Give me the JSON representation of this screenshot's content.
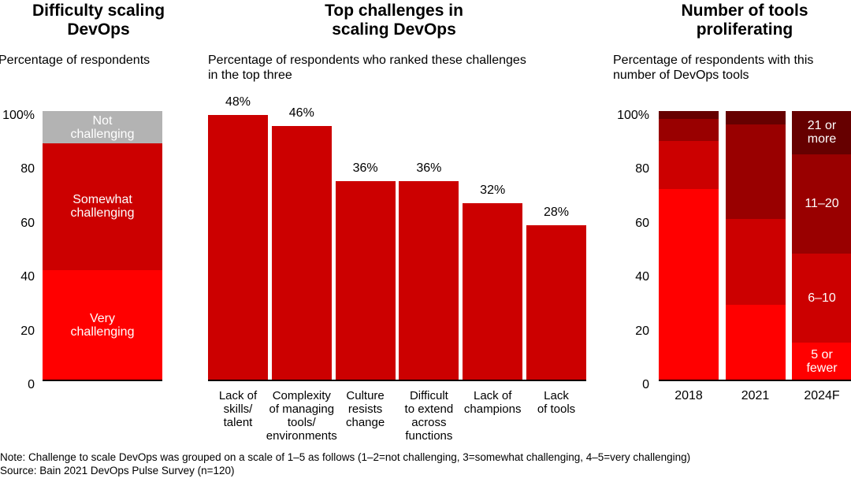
{
  "chart_data": [
    {
      "type": "bar",
      "stacked": true,
      "title": "Difficulty scaling\nDevOps",
      "subtitle": "Percentage of respondents",
      "yticks": [
        "100%",
        "80",
        "60",
        "40",
        "20",
        "0"
      ],
      "ylim": [
        0,
        100
      ],
      "series": [
        {
          "name": "Very\nchallenging",
          "value": 41,
          "color": "#ff0000"
        },
        {
          "name": "Somewhat\nchallenging",
          "value": 47,
          "color": "#cc0000"
        },
        {
          "name": "Not\nchallenging",
          "value": 12,
          "color": "#b3b3b3"
        }
      ]
    },
    {
      "type": "bar",
      "title": "Top challenges in\nscaling DevOps",
      "subtitle": "Percentage of respondents who ranked these challenges\nin the top three",
      "categories": [
        "Lack of\nskills/\ntalent",
        "Complexity\nof managing\ntools/\nenvironments",
        "Culture\nresists\nchange",
        "Difficult\nto extend\nacross\nfunctions",
        "Lack of\nchampions",
        "Lack\nof tools"
      ],
      "values": [
        48,
        46,
        36,
        36,
        32,
        28
      ],
      "labels": [
        "48%",
        "46%",
        "36%",
        "36%",
        "32%",
        "28%"
      ],
      "color": "#cc0000"
    },
    {
      "type": "bar",
      "stacked": true,
      "title": "Number of tools\nproliferating",
      "subtitle": "Percentage of respondents with this\nnumber of DevOps tools",
      "yticks": [
        "100%",
        "80",
        "60",
        "40",
        "20",
        "0"
      ],
      "ylim": [
        0,
        100
      ],
      "categories": [
        "2018",
        "2021",
        "2024F"
      ],
      "series": [
        {
          "name": "5 or\nfewer",
          "values": [
            71,
            28,
            14
          ],
          "color": "#ff0000"
        },
        {
          "name": "6–10",
          "values": [
            18,
            32,
            33
          ],
          "color": "#cc0000"
        },
        {
          "name": "11–20",
          "values": [
            8,
            35,
            37
          ],
          "color": "#990000"
        },
        {
          "name": "21 or\nmore",
          "values": [
            3,
            5,
            16
          ],
          "color": "#660000"
        }
      ]
    }
  ],
  "notes": {
    "note": "Note: Challenge to scale DevOps was grouped on a scale of 1–5 as follows (1–2=not challenging, 3=somewhat challenging, 4–5=very challenging)",
    "source": "Source: Bain 2021 DevOps Pulse Survey (n=120)"
  }
}
